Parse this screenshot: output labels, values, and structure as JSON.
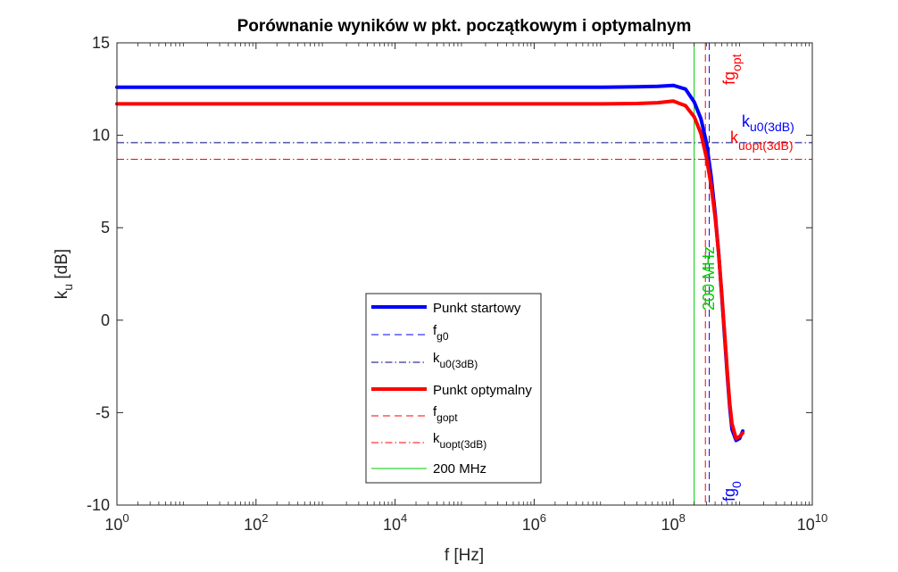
{
  "chart_data": {
    "type": "line",
    "title": "Porównanie wyników w pkt. początkowym i optymalnym",
    "xlabel": "f [Hz]",
    "ylabel": {
      "base": "k",
      "sub": "u",
      "rest": " [dB]"
    },
    "xscale": "log",
    "xlim": [
      1,
      10000000000
    ],
    "ylim": [
      -10,
      15
    ],
    "xticks": [
      {
        "value": 1,
        "base": "10",
        "exp": "0"
      },
      {
        "value": 100,
        "base": "10",
        "exp": "2"
      },
      {
        "value": 10000,
        "base": "10",
        "exp": "4"
      },
      {
        "value": 1000000,
        "base": "10",
        "exp": "6"
      },
      {
        "value": 100000000,
        "base": "10",
        "exp": "8"
      },
      {
        "value": 10000000000,
        "base": "10",
        "exp": "10"
      }
    ],
    "yticks": [
      {
        "value": -10,
        "label": "-10"
      },
      {
        "value": -5,
        "label": "-5"
      },
      {
        "value": 0,
        "label": "0"
      },
      {
        "value": 5,
        "label": "5"
      },
      {
        "value": 10,
        "label": "10"
      },
      {
        "value": 15,
        "label": "15"
      }
    ],
    "grid": false,
    "legend_position": "center-bottom",
    "series": [
      {
        "name": "Punkt startowy",
        "color": "#0000ff",
        "x": [
          1,
          10,
          100,
          1000,
          10000,
          100000,
          1000000,
          10000000,
          30000000,
          60000000,
          100000000,
          150000000,
          200000000,
          250000000,
          300000000,
          350000000,
          400000000,
          450000000,
          500000000,
          550000000,
          600000000,
          650000000,
          700000000,
          800000000,
          900000000,
          1000000000
        ],
        "y": [
          12.6,
          12.6,
          12.6,
          12.6,
          12.6,
          12.6,
          12.6,
          12.6,
          12.62,
          12.65,
          12.7,
          12.5,
          11.8,
          10.9,
          9.6,
          7.8,
          5.8,
          3.6,
          1.3,
          -1.0,
          -3.0,
          -4.7,
          -5.9,
          -6.5,
          -6.4,
          -6.0
        ]
      },
      {
        "name": "Punkt optymalny",
        "color": "#ff0000",
        "x": [
          1,
          10,
          100,
          1000,
          10000,
          100000,
          1000000,
          10000000,
          30000000,
          60000000,
          100000000,
          150000000,
          200000000,
          250000000,
          300000000,
          350000000,
          400000000,
          450000000,
          500000000,
          550000000,
          600000000,
          650000000,
          700000000,
          800000000,
          900000000,
          1000000000
        ],
        "y": [
          11.7,
          11.7,
          11.7,
          11.7,
          11.7,
          11.7,
          11.7,
          11.7,
          11.72,
          11.76,
          11.85,
          11.6,
          11.0,
          10.1,
          8.8,
          7.3,
          5.6,
          3.6,
          1.4,
          -0.8,
          -2.8,
          -4.5,
          -5.6,
          -6.4,
          -6.3,
          -6.1
        ]
      }
    ],
    "reference_lines": [
      {
        "name": "f_g0",
        "orientation": "vertical",
        "value": 330000000,
        "color": "#0000ff",
        "style": "dashed"
      },
      {
        "name": "k_u0(3dB)",
        "orientation": "horizontal",
        "value": 9.6,
        "color": "#00007f",
        "style": "dashdot"
      },
      {
        "name": "f_gopt",
        "orientation": "vertical",
        "value": 290000000,
        "color": "#ff0000",
        "style": "dashed"
      },
      {
        "name": "k_uopt(3dB)",
        "orientation": "horizontal",
        "value": 8.7,
        "color": "#ff0000",
        "style": "dashdot"
      },
      {
        "name": "200 MHz",
        "orientation": "vertical",
        "value": 200000000,
        "color": "#00cc00",
        "style": "solid"
      }
    ],
    "legend": [
      {
        "base": "Punkt startowy",
        "sub": "",
        "color": "#0000ff",
        "style": "solid-thick"
      },
      {
        "base": "f",
        "sub": "g0",
        "color": "#0000ff",
        "style": "dashed"
      },
      {
        "base": "k",
        "sub": "u0(3dB)",
        "color": "#00007f",
        "style": "dashdot"
      },
      {
        "base": "Punkt optymalny",
        "sub": "",
        "color": "#ff0000",
        "style": "solid-thick"
      },
      {
        "base": "f",
        "sub": "gopt",
        "color": "#ff0000",
        "style": "dashed"
      },
      {
        "base": "k",
        "sub": "uopt(3dB)",
        "color": "#ff0000",
        "style": "dashdot"
      },
      {
        "base": "200 MHz",
        "sub": "",
        "color": "#00cc00",
        "style": "solid-thin"
      }
    ],
    "annotations": [
      {
        "base": "k",
        "sub": "u0(3dB)",
        "color": "#0000ff"
      },
      {
        "base": "k",
        "sub": "uopt(3dB)",
        "color": "#ff0000"
      },
      {
        "base": "fg",
        "sub": "opt",
        "color": "#ff0000"
      },
      {
        "base": "fg",
        "sub": "0",
        "color": "#0000ff"
      },
      {
        "base": "200 MHz",
        "sub": "",
        "color": "#00cc00"
      }
    ]
  }
}
